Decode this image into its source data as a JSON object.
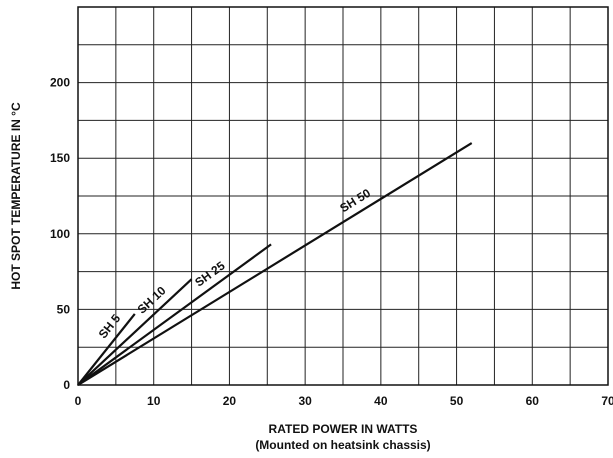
{
  "chart_data": {
    "type": "line",
    "title": "",
    "xlabel": "RATED POWER IN WATTS",
    "xlabel_sub": "(Mounted on heatsink chassis)",
    "ylabel": "HOT SPOT TEMPERATURE IN °C",
    "xlim": [
      0,
      70
    ],
    "ylim": [
      0,
      250
    ],
    "x_ticks": [
      0,
      10,
      20,
      30,
      40,
      50,
      60,
      70
    ],
    "y_ticks": [
      0,
      50,
      100,
      150,
      200
    ],
    "x_grid_step": 5,
    "y_grid_step": 25,
    "grid": true,
    "series": [
      {
        "name": "SH 5",
        "x": [
          0,
          7.5
        ],
        "y": [
          0,
          47
        ]
      },
      {
        "name": "SH 10",
        "x": [
          0,
          15
        ],
        "y": [
          0,
          70
        ]
      },
      {
        "name": "SH 25",
        "x": [
          0,
          25.5
        ],
        "y": [
          0,
          93
        ]
      },
      {
        "name": "SH 50",
        "x": [
          0,
          52
        ],
        "y": [
          0,
          160
        ]
      }
    ]
  }
}
